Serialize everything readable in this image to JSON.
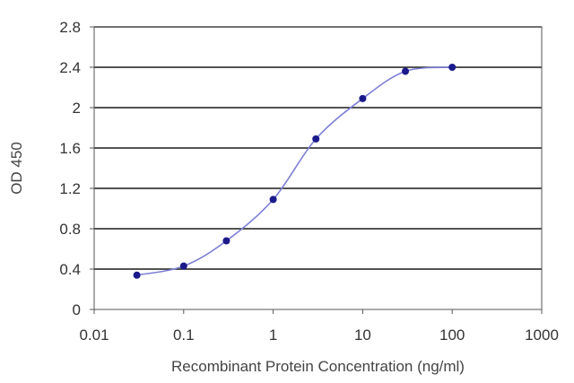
{
  "chart_data": {
    "type": "line",
    "xscale": "log",
    "xlabel": "Recombinant Protein Concentration (ng/ml)",
    "ylabel": "OD 450",
    "xlim": [
      0.01,
      1000
    ],
    "ylim": [
      0,
      2.8
    ],
    "xticks": [
      "0.01",
      "0.1",
      "1",
      "10",
      "100",
      "1000"
    ],
    "yticks": [
      "0",
      "0.4",
      "0.8",
      "1.2",
      "1.6",
      "2",
      "2.4",
      "2.8"
    ],
    "grid": "horizontal",
    "legend": "none",
    "series": [
      {
        "x": [
          0.03,
          0.1,
          0.3,
          1,
          3,
          10,
          30,
          100
        ],
        "y": [
          0.34,
          0.43,
          0.68,
          1.09,
          1.69,
          2.09,
          2.36,
          2.4
        ]
      }
    ],
    "colors": {
      "line": "#7b7fd6",
      "marker": "#1a1a8c",
      "grid": "#1a1a1a",
      "plot_bg": "#ffffff"
    }
  }
}
